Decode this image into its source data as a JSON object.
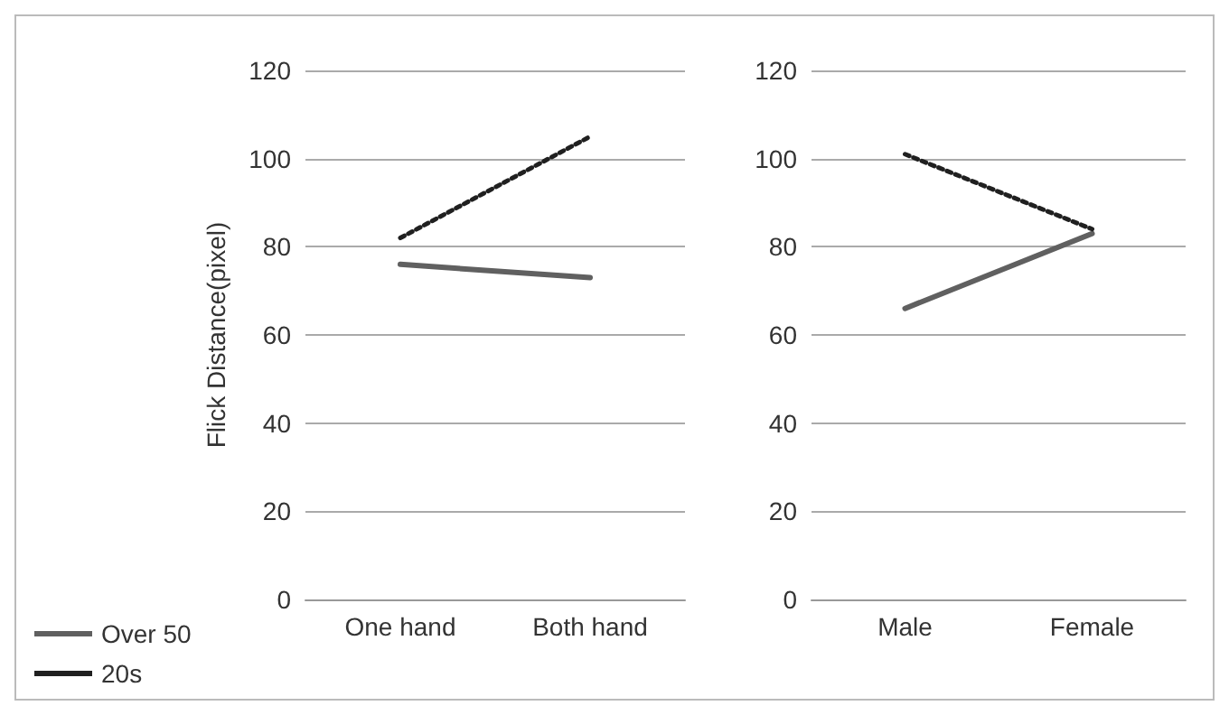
{
  "chart_data": [
    {
      "type": "line",
      "ylabel": "Flick Distance(pixel)",
      "categories": [
        "One hand",
        "Both hand"
      ],
      "ylim": [
        0,
        120
      ],
      "yticks": [
        0,
        20,
        40,
        60,
        80,
        100,
        120
      ],
      "grid": "y",
      "legend": "bottom left",
      "marker": "none",
      "series": [
        {
          "name": "Over 50",
          "color": "#606060",
          "line_style": "solid",
          "values": [
            76,
            73
          ]
        },
        {
          "name": "20s",
          "color": "#202020",
          "line_style": "dotted",
          "values": [
            82,
            105
          ]
        }
      ]
    },
    {
      "type": "line",
      "categories": [
        "Male",
        "Female"
      ],
      "ylim": [
        0,
        120
      ],
      "yticks": [
        0,
        20,
        40,
        60,
        80,
        100,
        120
      ],
      "grid": "y",
      "marker": "none",
      "series": [
        {
          "color": "#606060",
          "line_style": "solid",
          "values": [
            66,
            83
          ]
        },
        {
          "color": "#202020",
          "line_style": "dotted",
          "values": [
            101,
            84
          ]
        }
      ]
    }
  ]
}
